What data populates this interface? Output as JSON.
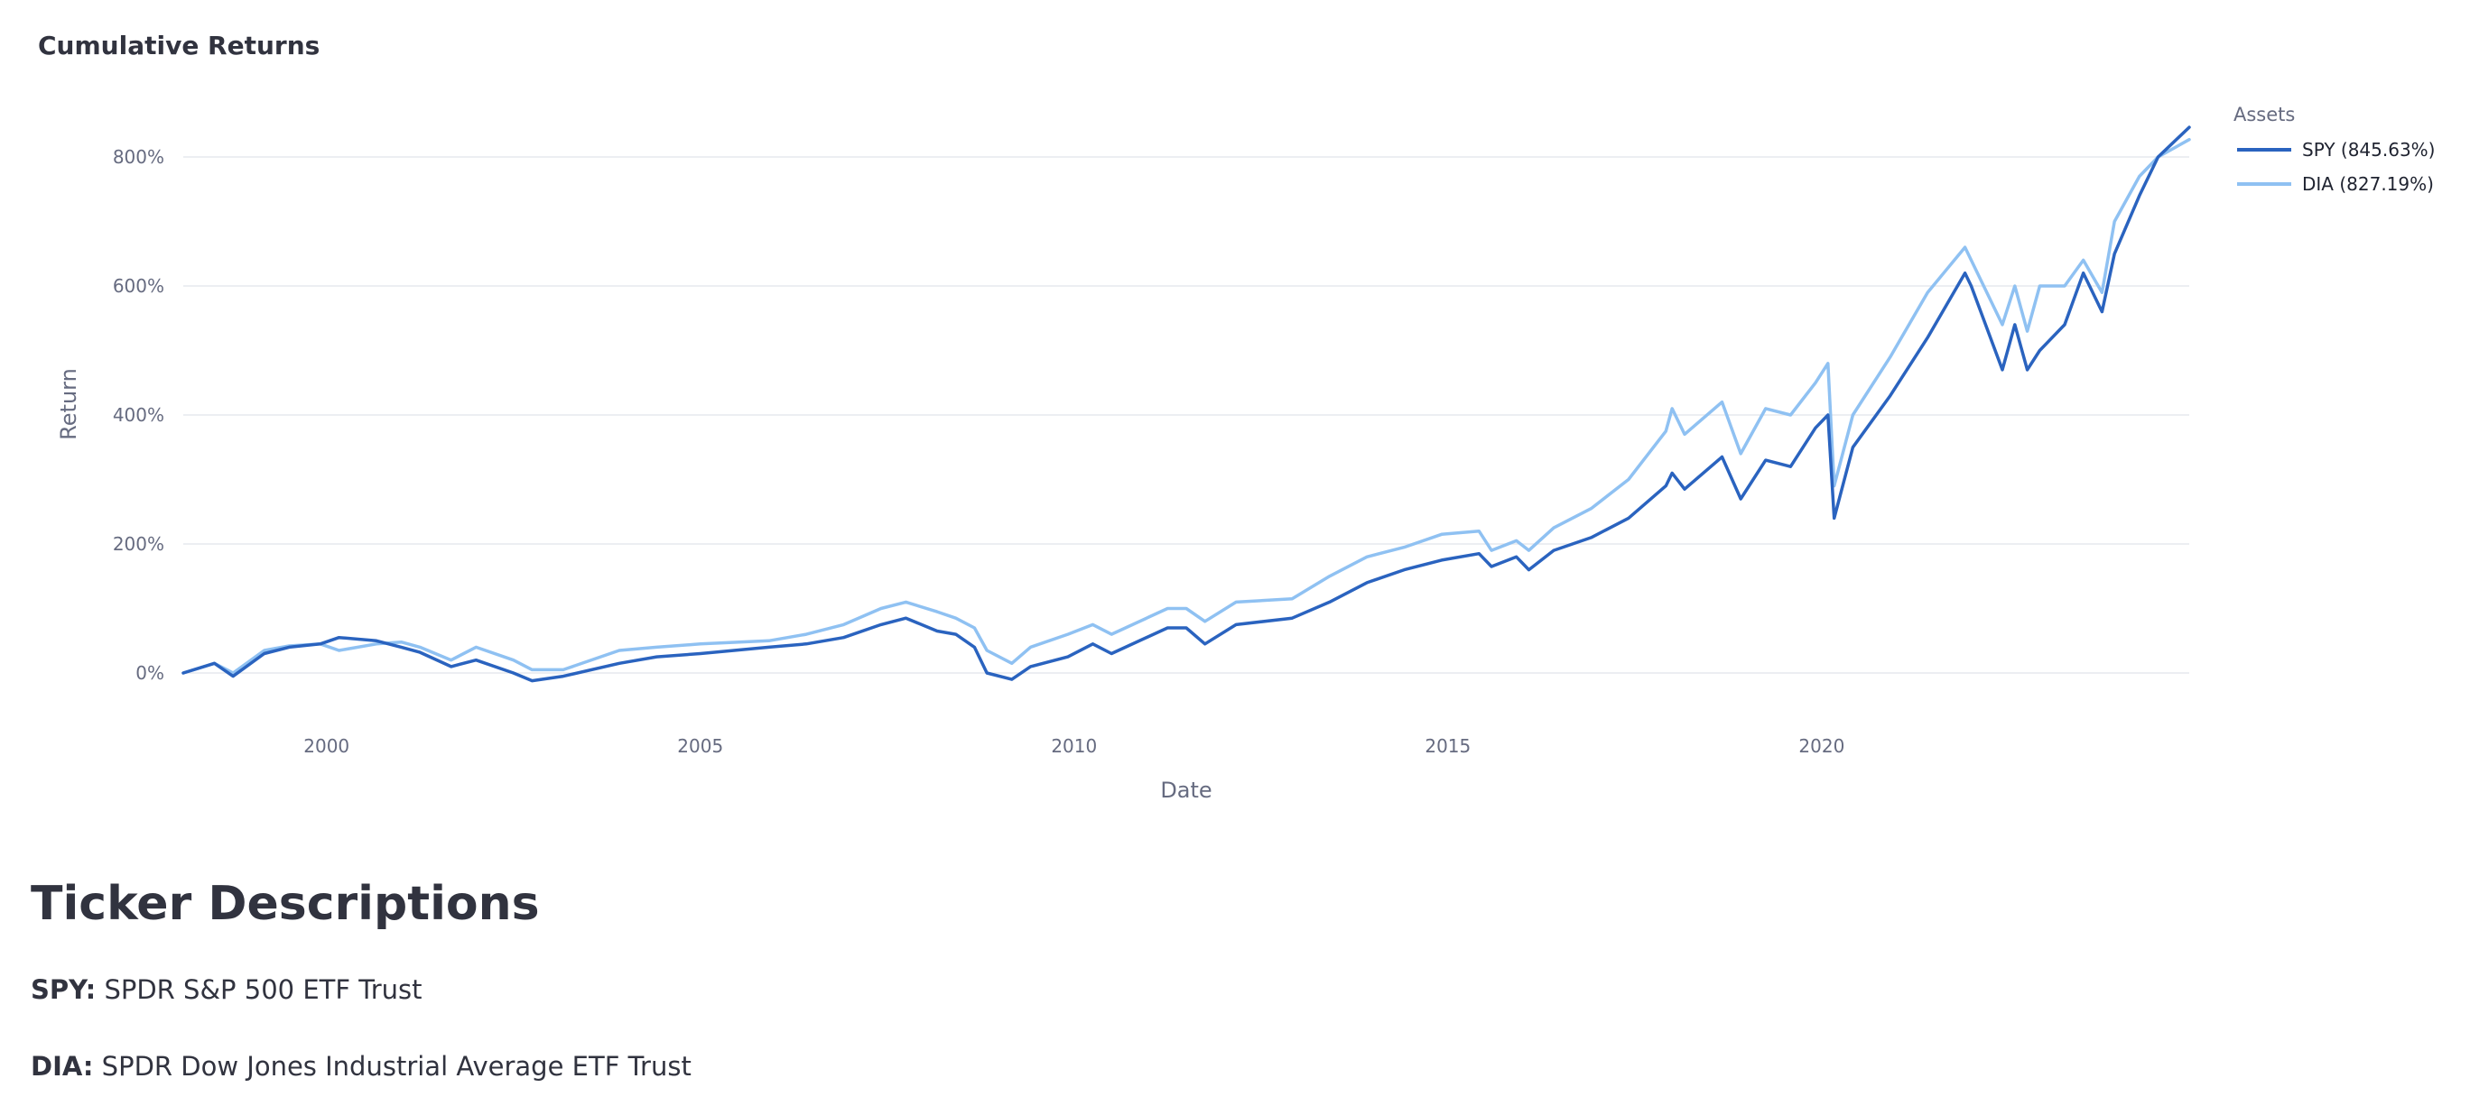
{
  "chart_title": "Cumulative Returns",
  "chart_data": {
    "type": "line",
    "title": "Cumulative Returns",
    "xlabel": "Date",
    "ylabel": "Return",
    "x_tick_labels": [
      "2000",
      "2005",
      "2010",
      "2015",
      "2020"
    ],
    "y_tick_labels": [
      "0%",
      "200%",
      "400%",
      "600%",
      "800%"
    ],
    "xlim": [
      "1998-02-01",
      "2024-12-01"
    ],
    "ylim": [
      -80,
      900
    ],
    "grid": true,
    "legend_title": "Assets",
    "legend_position": "top-right",
    "series": [
      {
        "name": "SPY (845.63%)",
        "color": "#2a63bf",
        "points": [
          [
            "1998-02-01",
            0
          ],
          [
            "1998-07-01",
            15
          ],
          [
            "1998-10-01",
            -5
          ],
          [
            "1999-03-01",
            30
          ],
          [
            "1999-07-01",
            40
          ],
          [
            "1999-12-01",
            45
          ],
          [
            "2000-03-01",
            55
          ],
          [
            "2000-09-01",
            50
          ],
          [
            "2001-01-01",
            40
          ],
          [
            "2001-04-01",
            32
          ],
          [
            "2001-09-01",
            10
          ],
          [
            "2002-01-01",
            20
          ],
          [
            "2002-07-01",
            0
          ],
          [
            "2002-10-01",
            -12
          ],
          [
            "2003-03-01",
            -5
          ],
          [
            "2003-12-01",
            15
          ],
          [
            "2004-06-01",
            25
          ],
          [
            "2005-01-01",
            30
          ],
          [
            "2005-12-01",
            40
          ],
          [
            "2006-06-01",
            45
          ],
          [
            "2006-12-01",
            55
          ],
          [
            "2007-06-01",
            75
          ],
          [
            "2007-10-01",
            85
          ],
          [
            "2008-03-01",
            65
          ],
          [
            "2008-06-01",
            60
          ],
          [
            "2008-09-01",
            40
          ],
          [
            "2008-11-01",
            0
          ],
          [
            "2009-03-01",
            -10
          ],
          [
            "2009-06-01",
            10
          ],
          [
            "2009-12-01",
            25
          ],
          [
            "2010-04-01",
            45
          ],
          [
            "2010-07-01",
            30
          ],
          [
            "2011-04-01",
            70
          ],
          [
            "2011-07-01",
            70
          ],
          [
            "2011-10-01",
            45
          ],
          [
            "2012-03-01",
            75
          ],
          [
            "2012-12-01",
            85
          ],
          [
            "2013-06-01",
            110
          ],
          [
            "2013-12-01",
            140
          ],
          [
            "2014-06-01",
            160
          ],
          [
            "2014-12-01",
            175
          ],
          [
            "2015-06-01",
            185
          ],
          [
            "2015-08-01",
            165
          ],
          [
            "2015-12-01",
            180
          ],
          [
            "2016-02-01",
            160
          ],
          [
            "2016-06-01",
            190
          ],
          [
            "2016-12-01",
            210
          ],
          [
            "2017-06-01",
            240
          ],
          [
            "2017-12-01",
            290
          ],
          [
            "2018-01-01",
            310
          ],
          [
            "2018-03-01",
            285
          ],
          [
            "2018-09-01",
            335
          ],
          [
            "2018-12-01",
            270
          ],
          [
            "2019-04-01",
            330
          ],
          [
            "2019-08-01",
            320
          ],
          [
            "2019-12-01",
            380
          ],
          [
            "2020-02-01",
            400
          ],
          [
            "2020-03-01",
            240
          ],
          [
            "2020-06-01",
            350
          ],
          [
            "2020-12-01",
            430
          ],
          [
            "2021-06-01",
            520
          ],
          [
            "2021-12-01",
            620
          ],
          [
            "2022-01-01",
            600
          ],
          [
            "2022-06-01",
            470
          ],
          [
            "2022-08-01",
            540
          ],
          [
            "2022-10-01",
            470
          ],
          [
            "2022-12-01",
            500
          ],
          [
            "2023-04-01",
            540
          ],
          [
            "2023-07-01",
            620
          ],
          [
            "2023-10-01",
            560
          ],
          [
            "2023-12-01",
            650
          ],
          [
            "2024-04-01",
            740
          ],
          [
            "2024-07-01",
            800
          ],
          [
            "2024-12-01",
            846
          ]
        ]
      },
      {
        "name": "DIA (827.19%)",
        "color": "#8fc1f2",
        "points": [
          [
            "1998-02-01",
            0
          ],
          [
            "1998-07-01",
            15
          ],
          [
            "1998-10-01",
            0
          ],
          [
            "1999-03-01",
            35
          ],
          [
            "1999-07-01",
            42
          ],
          [
            "1999-12-01",
            45
          ],
          [
            "2000-03-01",
            35
          ],
          [
            "2000-09-01",
            45
          ],
          [
            "2001-01-01",
            48
          ],
          [
            "2001-04-01",
            40
          ],
          [
            "2001-09-01",
            20
          ],
          [
            "2002-01-01",
            40
          ],
          [
            "2002-07-01",
            20
          ],
          [
            "2002-10-01",
            5
          ],
          [
            "2003-03-01",
            5
          ],
          [
            "2003-12-01",
            35
          ],
          [
            "2004-06-01",
            40
          ],
          [
            "2005-01-01",
            45
          ],
          [
            "2005-12-01",
            50
          ],
          [
            "2006-06-01",
            60
          ],
          [
            "2006-12-01",
            75
          ],
          [
            "2007-06-01",
            100
          ],
          [
            "2007-10-01",
            110
          ],
          [
            "2008-03-01",
            95
          ],
          [
            "2008-06-01",
            85
          ],
          [
            "2008-09-01",
            70
          ],
          [
            "2008-11-01",
            35
          ],
          [
            "2009-03-01",
            15
          ],
          [
            "2009-06-01",
            40
          ],
          [
            "2009-12-01",
            60
          ],
          [
            "2010-04-01",
            75
          ],
          [
            "2010-07-01",
            60
          ],
          [
            "2011-04-01",
            100
          ],
          [
            "2011-07-01",
            100
          ],
          [
            "2011-10-01",
            80
          ],
          [
            "2012-03-01",
            110
          ],
          [
            "2012-12-01",
            115
          ],
          [
            "2013-06-01",
            150
          ],
          [
            "2013-12-01",
            180
          ],
          [
            "2014-06-01",
            195
          ],
          [
            "2014-12-01",
            215
          ],
          [
            "2015-06-01",
            220
          ],
          [
            "2015-08-01",
            190
          ],
          [
            "2015-12-01",
            205
          ],
          [
            "2016-02-01",
            190
          ],
          [
            "2016-06-01",
            225
          ],
          [
            "2016-12-01",
            255
          ],
          [
            "2017-06-01",
            300
          ],
          [
            "2017-12-01",
            375
          ],
          [
            "2018-01-01",
            410
          ],
          [
            "2018-03-01",
            370
          ],
          [
            "2018-09-01",
            420
          ],
          [
            "2018-12-01",
            340
          ],
          [
            "2019-04-01",
            410
          ],
          [
            "2019-08-01",
            400
          ],
          [
            "2019-12-01",
            450
          ],
          [
            "2020-02-01",
            480
          ],
          [
            "2020-03-01",
            290
          ],
          [
            "2020-06-01",
            400
          ],
          [
            "2020-12-01",
            490
          ],
          [
            "2021-06-01",
            590
          ],
          [
            "2021-12-01",
            660
          ],
          [
            "2022-01-01",
            640
          ],
          [
            "2022-06-01",
            540
          ],
          [
            "2022-08-01",
            600
          ],
          [
            "2022-10-01",
            530
          ],
          [
            "2022-12-01",
            600
          ],
          [
            "2023-04-01",
            600
          ],
          [
            "2023-07-01",
            640
          ],
          [
            "2023-10-01",
            590
          ],
          [
            "2023-12-01",
            700
          ],
          [
            "2024-04-01",
            770
          ],
          [
            "2024-07-01",
            800
          ],
          [
            "2024-12-01",
            827
          ]
        ]
      }
    ]
  },
  "ticker_section": {
    "heading": "Ticker Descriptions",
    "items": [
      {
        "symbol": "SPY:",
        "description": "SPDR S&P 500 ETF Trust"
      },
      {
        "symbol": "DIA:",
        "description": "SPDR Dow Jones Industrial Average ETF Trust"
      }
    ]
  }
}
